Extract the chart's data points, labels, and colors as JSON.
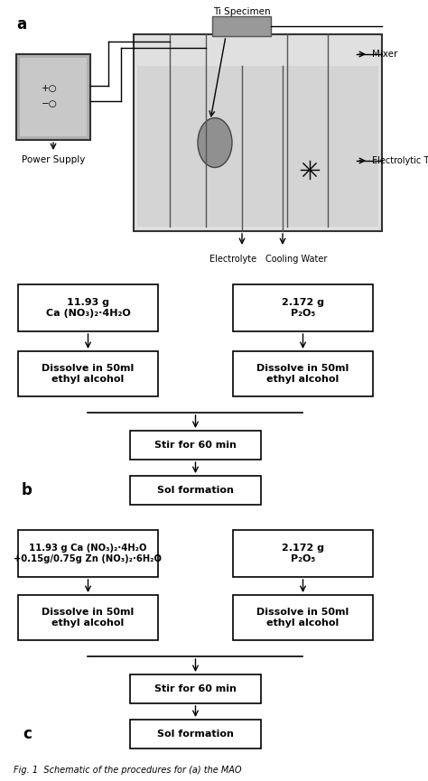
{
  "fig_width": 4.74,
  "fig_height": 8.65,
  "bg_color": "#ffffff",
  "text_color": "#000000",
  "box_edge": "#000000",
  "box_fill": "#ffffff",
  "gray_fill": "#aaaaaa",
  "tank_fill": "#cccccc",
  "ps_fill": "#999999",
  "label_a": "a",
  "label_b": "b",
  "label_c": "c",
  "annotations": {
    "ti_specimen": "Ti Specimen",
    "mixer": "Mixer",
    "electrolytic_tank": "Electrolytic Tank",
    "electrolyte": "Electrolyte",
    "cooling_water": "Cooling Water",
    "power_supply": "Power Supply"
  },
  "flow_a_box1": "11.93 g\nCa (NO₃)₂·4H₂O",
  "flow_a_box2": "2.172 g\nP₂O₅",
  "flow_a_box3": "Dissolve in 50ml\nethyl alcohol",
  "flow_a_box4": "Dissolve in 50ml\nethyl alcohol",
  "flow_a_box5": "Stir for 60 min",
  "flow_a_box6": "Sol formation",
  "flow_b_box1": "11.93 g Ca (NO₃)₂·4H₂O\n+0.15g/0.75g Zn (NO₃)₂·6H₂O",
  "flow_b_box2": "2.172 g\nP₂O₅",
  "flow_b_box3": "Dissolve in 50ml\nethyl alcohol",
  "flow_b_box4": "Dissolve in 50ml\nethyl alcohol",
  "flow_b_box5": "Stir for 60 min",
  "flow_b_box6": "Sol formation",
  "caption": "Fig. 1  Schematic of the procedures for (a) the MAO"
}
